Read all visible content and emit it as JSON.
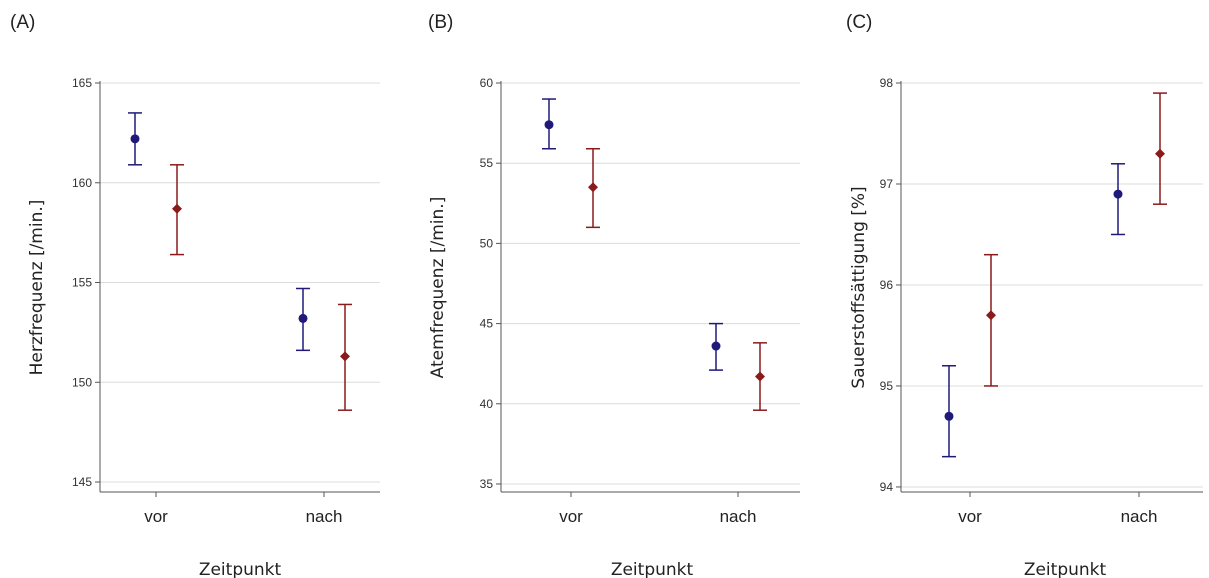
{
  "chart_data": [
    {
      "type": "scatter",
      "panel_label": "(A)",
      "xlabel": "Zeitpunkt",
      "ylabel": "Herzfrequenz [/min.]",
      "categories": [
        "vor",
        "nach"
      ],
      "ylim": [
        144.5,
        165
      ],
      "yticks": [
        "145",
        "150",
        "155",
        "160",
        "165"
      ],
      "grid": true,
      "series": [
        {
          "color": "#1f1a7a",
          "marker": "circle",
          "values": [
            162.2,
            153.2
          ],
          "lower": [
            160.9,
            151.6
          ],
          "upper": [
            163.5,
            154.7
          ]
        },
        {
          "color": "#8b1a1a",
          "marker": "diamond",
          "values": [
            158.7,
            151.3
          ],
          "lower": [
            156.4,
            148.6
          ],
          "upper": [
            160.9,
            153.9
          ]
        }
      ]
    },
    {
      "type": "scatter",
      "panel_label": "(B)",
      "xlabel": "Zeitpunkt",
      "ylabel": "Atemfrequenz [/min.]",
      "categories": [
        "vor",
        "nach"
      ],
      "ylim": [
        34.5,
        60
      ],
      "yticks": [
        "35",
        "40",
        "45",
        "50",
        "55",
        "60"
      ],
      "grid": true,
      "series": [
        {
          "color": "#1f1a7a",
          "marker": "circle",
          "values": [
            57.4,
            43.6
          ],
          "lower": [
            55.9,
            42.1
          ],
          "upper": [
            59.0,
            45.0
          ]
        },
        {
          "color": "#8b1a1a",
          "marker": "diamond",
          "values": [
            53.5,
            41.7
          ],
          "lower": [
            51.0,
            39.6
          ],
          "upper": [
            55.9,
            43.8
          ]
        }
      ]
    },
    {
      "type": "scatter",
      "panel_label": "(C)",
      "xlabel": "Zeitpunkt",
      "ylabel": "Sauerstoffsättigung [%]",
      "categories": [
        "vor",
        "nach"
      ],
      "ylim": [
        93.95,
        98
      ],
      "yticks": [
        "94",
        "95",
        "96",
        "97",
        "98"
      ],
      "grid": true,
      "series": [
        {
          "color": "#1f1a7a",
          "marker": "circle",
          "values": [
            94.7,
            96.9
          ],
          "lower": [
            94.3,
            96.5
          ],
          "upper": [
            95.2,
            97.2
          ]
        },
        {
          "color": "#8b1a1a",
          "marker": "diamond",
          "values": [
            95.7,
            97.3
          ],
          "lower": [
            95.0,
            96.8
          ],
          "upper": [
            96.3,
            97.9
          ]
        }
      ]
    }
  ]
}
